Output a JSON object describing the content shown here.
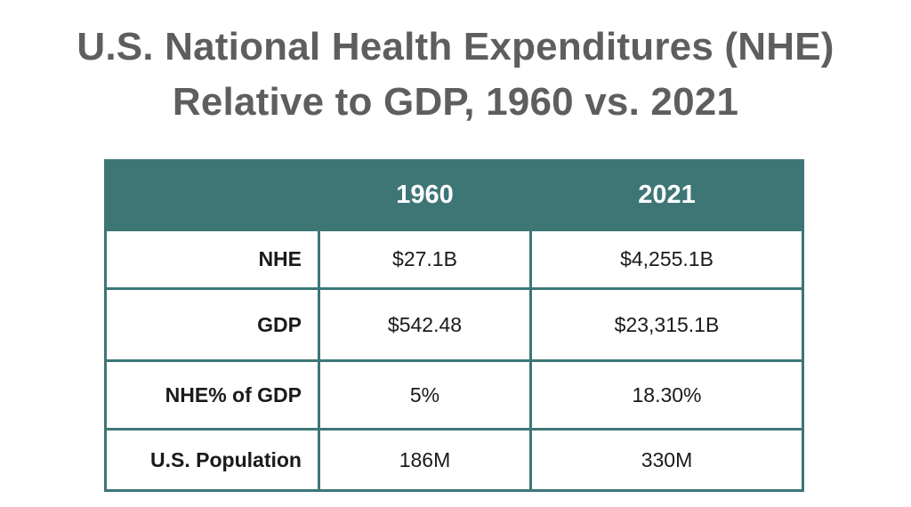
{
  "title": {
    "line1": "U.S. National Health Expenditures (NHE)",
    "line2": "Relative to GDP, 1960 vs. 2021"
  },
  "colors": {
    "title_text": "#5e5e60",
    "header_bg": "#3e7676",
    "border": "#3e7676",
    "header_text": "#ffffff"
  },
  "chart_data": {
    "type": "table",
    "title": "U.S. National Health Expenditures (NHE) Relative to GDP, 1960 vs. 2021",
    "columns": [
      "",
      "1960",
      "2021"
    ],
    "rows": [
      {
        "label": "NHE",
        "values": [
          "$27.1B",
          "$4,255.1B"
        ]
      },
      {
        "label": "GDP",
        "values": [
          "$542.48",
          "$23,315.1B"
        ]
      },
      {
        "label": "NHE% of GDP",
        "values": [
          "5%",
          "18.30%"
        ]
      },
      {
        "label": "U.S. Population",
        "values": [
          "186M",
          "330M"
        ]
      }
    ]
  }
}
